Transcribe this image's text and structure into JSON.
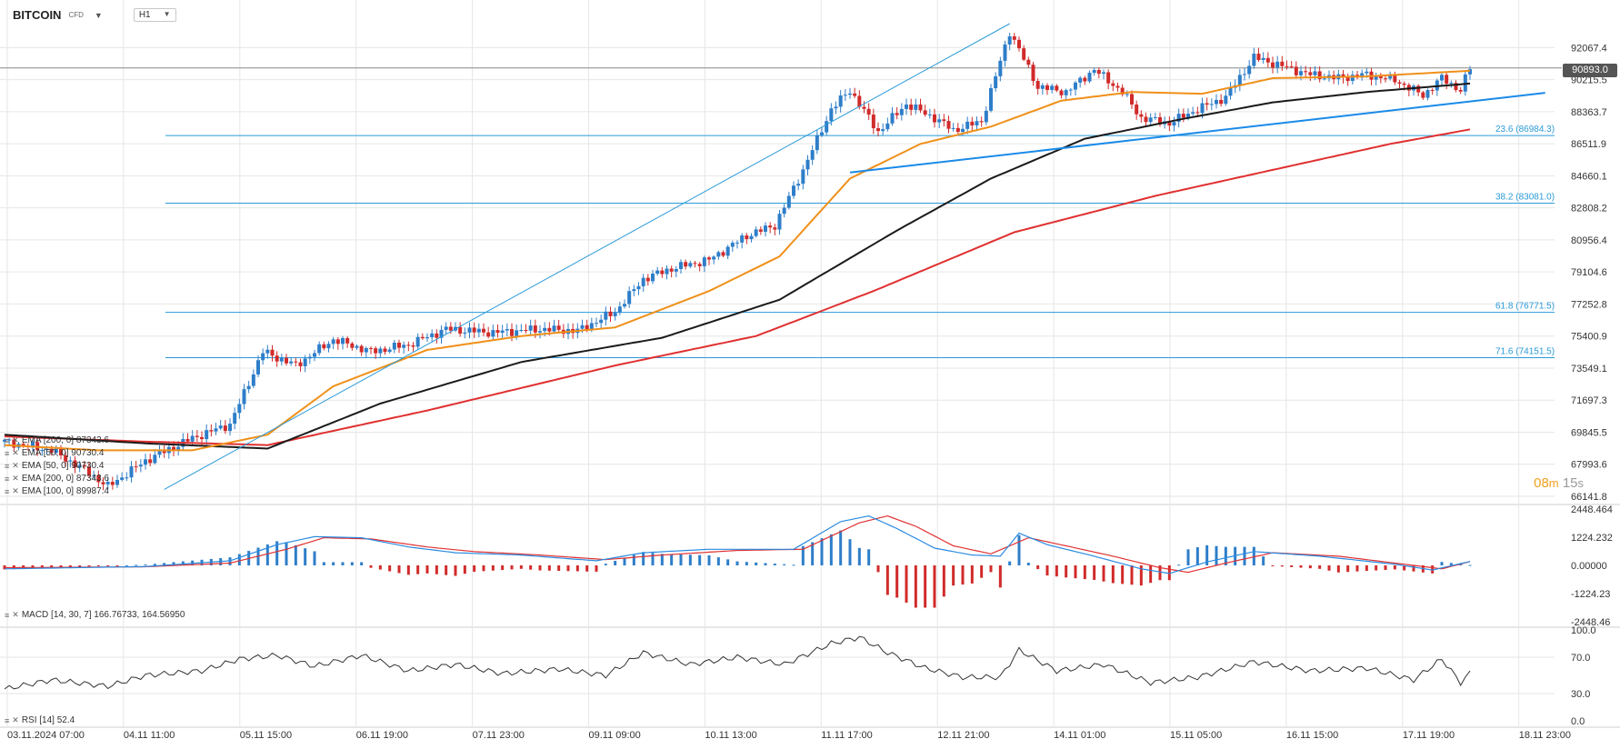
{
  "instrument": {
    "symbol": "BITCOIN",
    "type": "CFD",
    "timeframe": "H1"
  },
  "current_price_label": "90893.0",
  "timer": {
    "minutes": "08",
    "min_unit": "m",
    "seconds": "15",
    "sec_unit": "s"
  },
  "legends": {
    "ema_overlay_1": "EMA [200, 0] 87343.6",
    "ema_overlay_2": "EMA [50, 0] 90730.4",
    "ema_overlay_3": "EMA [50, 0] 90730.4",
    "ema200": "EMA [200, 0] 87343.6",
    "ema100": "EMA [100, 0] 89987.4",
    "macd": "MACD [14, 30, 7] 166.76733, 164.56950",
    "rsi": "RSI [14] 52.4"
  },
  "colors": {
    "up": "#2e7ec9",
    "down": "#d12a2a",
    "ema50": "#f0901a",
    "ema100": "#1a1a1a",
    "ema200": "#e03030",
    "fib": "#2a9ad8",
    "trend": "#1a8ae8",
    "macd": "#2a8ae0",
    "signal": "#e03030",
    "rsi": "#333333",
    "grid": "#e6e6e6"
  },
  "chart_data": [
    {
      "type": "candlestick",
      "title": "BITCOIN CFD H1",
      "y_ticks": [
        "92067.4",
        "90215.5",
        "88363.7",
        "86511.9",
        "84660.1",
        "82808.2",
        "80956.4",
        "79104.6",
        "77252.8",
        "75400.9",
        "73549.1",
        "71697.3",
        "69845.5",
        "67993.6",
        "66141.8"
      ],
      "ylim": [
        66141.8,
        93450
      ],
      "x_ticks": [
        "03.11.2024 07:00",
        "04.11 11:00",
        "05.11 15:00",
        "06.11 19:00",
        "07.11 23:00",
        "09.11 09:00",
        "10.11 13:00",
        "11.11 17:00",
        "12.11 21:00",
        "14.11 01:00",
        "15.11 05:00",
        "16.11 15:00",
        "17.11 19:00",
        "18.11 23:00"
      ],
      "current_price": 90893.0,
      "fib_levels": [
        {
          "label": "23.6 (86984.3)",
          "value": 86984.3
        },
        {
          "label": "38.2 (83081.0)",
          "value": 83081.0
        },
        {
          "label": "61.8 (76771.5)",
          "value": 76771.5
        },
        {
          "label": "71.6 (74151.5)",
          "value": 74151.5
        }
      ],
      "fib_swing": {
        "low": 66540,
        "high": 93450
      },
      "close_path": [
        {
          "t": 0,
          "v": 69300
        },
        {
          "t": 10,
          "v": 68800
        },
        {
          "t": 18,
          "v": 67500
        },
        {
          "t": 22,
          "v": 66700
        },
        {
          "t": 30,
          "v": 68200
        },
        {
          "t": 40,
          "v": 69500
        },
        {
          "t": 48,
          "v": 70300
        },
        {
          "t": 55,
          "v": 74500
        },
        {
          "t": 62,
          "v": 73700
        },
        {
          "t": 70,
          "v": 75200
        },
        {
          "t": 78,
          "v": 74500
        },
        {
          "t": 86,
          "v": 74900
        },
        {
          "t": 94,
          "v": 75800
        },
        {
          "t": 104,
          "v": 75600
        },
        {
          "t": 114,
          "v": 75800
        },
        {
          "t": 122,
          "v": 75700
        },
        {
          "t": 130,
          "v": 76800
        },
        {
          "t": 136,
          "v": 78700
        },
        {
          "t": 142,
          "v": 79300
        },
        {
          "t": 150,
          "v": 79800
        },
        {
          "t": 158,
          "v": 81200
        },
        {
          "t": 164,
          "v": 81800
        },
        {
          "t": 170,
          "v": 85000
        },
        {
          "t": 176,
          "v": 88500
        },
        {
          "t": 180,
          "v": 89600
        },
        {
          "t": 186,
          "v": 87200
        },
        {
          "t": 192,
          "v": 88800
        },
        {
          "t": 198,
          "v": 88000
        },
        {
          "t": 202,
          "v": 87300
        },
        {
          "t": 208,
          "v": 87800
        },
        {
          "t": 214,
          "v": 93000
        },
        {
          "t": 220,
          "v": 89800
        },
        {
          "t": 226,
          "v": 89500
        },
        {
          "t": 232,
          "v": 90800
        },
        {
          "t": 238,
          "v": 89500
        },
        {
          "t": 242,
          "v": 88000
        },
        {
          "t": 248,
          "v": 87700
        },
        {
          "t": 254,
          "v": 88500
        },
        {
          "t": 260,
          "v": 89200
        },
        {
          "t": 266,
          "v": 91500
        },
        {
          "t": 272,
          "v": 91000
        },
        {
          "t": 278,
          "v": 90500
        },
        {
          "t": 284,
          "v": 90300
        },
        {
          "t": 290,
          "v": 90500
        },
        {
          "t": 296,
          "v": 90200
        },
        {
          "t": 302,
          "v": 89300
        },
        {
          "t": 306,
          "v": 90300
        },
        {
          "t": 310,
          "v": 89600
        },
        {
          "t": 312,
          "v": 90900
        }
      ],
      "ema50_path": [
        {
          "t": 0,
          "v": 69100
        },
        {
          "t": 20,
          "v": 68800
        },
        {
          "t": 40,
          "v": 68800
        },
        {
          "t": 56,
          "v": 69700
        },
        {
          "t": 70,
          "v": 72500
        },
        {
          "t": 90,
          "v": 74600
        },
        {
          "t": 110,
          "v": 75400
        },
        {
          "t": 130,
          "v": 75900
        },
        {
          "t": 150,
          "v": 78000
        },
        {
          "t": 165,
          "v": 80000
        },
        {
          "t": 180,
          "v": 84500
        },
        {
          "t": 195,
          "v": 86500
        },
        {
          "t": 210,
          "v": 87500
        },
        {
          "t": 225,
          "v": 89000
        },
        {
          "t": 240,
          "v": 89500
        },
        {
          "t": 255,
          "v": 89400
        },
        {
          "t": 270,
          "v": 90300
        },
        {
          "t": 290,
          "v": 90400
        },
        {
          "t": 312,
          "v": 90730
        }
      ],
      "ema100_path": [
        {
          "t": 0,
          "v": 69700
        },
        {
          "t": 30,
          "v": 69200
        },
        {
          "t": 56,
          "v": 68900
        },
        {
          "t": 80,
          "v": 71500
        },
        {
          "t": 110,
          "v": 73900
        },
        {
          "t": 140,
          "v": 75300
        },
        {
          "t": 165,
          "v": 77500
        },
        {
          "t": 190,
          "v": 81500
        },
        {
          "t": 210,
          "v": 84500
        },
        {
          "t": 230,
          "v": 86800
        },
        {
          "t": 250,
          "v": 87900
        },
        {
          "t": 270,
          "v": 88900
        },
        {
          "t": 290,
          "v": 89500
        },
        {
          "t": 312,
          "v": 89990
        }
      ],
      "ema200_path": [
        {
          "t": 0,
          "v": 69600
        },
        {
          "t": 30,
          "v": 69300
        },
        {
          "t": 56,
          "v": 69100
        },
        {
          "t": 90,
          "v": 71100
        },
        {
          "t": 130,
          "v": 73700
        },
        {
          "t": 160,
          "v": 75400
        },
        {
          "t": 185,
          "v": 78000
        },
        {
          "t": 215,
          "v": 81400
        },
        {
          "t": 245,
          "v": 83500
        },
        {
          "t": 270,
          "v": 85000
        },
        {
          "t": 295,
          "v": 86500
        },
        {
          "t": 312,
          "v": 87340
        }
      ],
      "trendlines": [
        {
          "t1": 34,
          "v1": 66540,
          "t2": 214,
          "v2": 93450,
          "kind": "thin"
        },
        {
          "t1": 180,
          "v1": 84850,
          "t2": 328,
          "v2": 89450,
          "kind": "bold"
        }
      ]
    },
    {
      "type": "macd",
      "params": "MACD [14, 30, 7]",
      "y_ticks": [
        "2448.464",
        "1224.232",
        "0.00000",
        "-1224.23",
        "-2448.46"
      ],
      "ylim": [
        -2448.46,
        2448.464
      ],
      "macd_path": [
        {
          "t": 0,
          "v": -150
        },
        {
          "t": 30,
          "v": -50
        },
        {
          "t": 48,
          "v": 200
        },
        {
          "t": 58,
          "v": 900
        },
        {
          "t": 66,
          "v": 1250
        },
        {
          "t": 76,
          "v": 1200
        },
        {
          "t": 86,
          "v": 800
        },
        {
          "t": 96,
          "v": 550
        },
        {
          "t": 110,
          "v": 450
        },
        {
          "t": 126,
          "v": 200
        },
        {
          "t": 136,
          "v": 550
        },
        {
          "t": 150,
          "v": 700
        },
        {
          "t": 168,
          "v": 700
        },
        {
          "t": 178,
          "v": 1900
        },
        {
          "t": 184,
          "v": 2150
        },
        {
          "t": 190,
          "v": 1600
        },
        {
          "t": 198,
          "v": 750
        },
        {
          "t": 206,
          "v": 450
        },
        {
          "t": 212,
          "v": 400
        },
        {
          "t": 216,
          "v": 1400
        },
        {
          "t": 222,
          "v": 900
        },
        {
          "t": 232,
          "v": 400
        },
        {
          "t": 242,
          "v": -150
        },
        {
          "t": 248,
          "v": -350
        },
        {
          "t": 256,
          "v": 150
        },
        {
          "t": 266,
          "v": 600
        },
        {
          "t": 280,
          "v": 400
        },
        {
          "t": 296,
          "v": 50
        },
        {
          "t": 304,
          "v": -200
        },
        {
          "t": 312,
          "v": 170
        }
      ],
      "signal_path": [
        {
          "t": 0,
          "v": -100
        },
        {
          "t": 30,
          "v": -60
        },
        {
          "t": 48,
          "v": 100
        },
        {
          "t": 60,
          "v": 700
        },
        {
          "t": 68,
          "v": 1200
        },
        {
          "t": 78,
          "v": 1150
        },
        {
          "t": 90,
          "v": 800
        },
        {
          "t": 100,
          "v": 600
        },
        {
          "t": 114,
          "v": 450
        },
        {
          "t": 128,
          "v": 250
        },
        {
          "t": 140,
          "v": 450
        },
        {
          "t": 156,
          "v": 650
        },
        {
          "t": 170,
          "v": 700
        },
        {
          "t": 182,
          "v": 1850
        },
        {
          "t": 188,
          "v": 2150
        },
        {
          "t": 194,
          "v": 1700
        },
        {
          "t": 202,
          "v": 850
        },
        {
          "t": 210,
          "v": 500
        },
        {
          "t": 218,
          "v": 1200
        },
        {
          "t": 226,
          "v": 850
        },
        {
          "t": 236,
          "v": 400
        },
        {
          "t": 246,
          "v": -100
        },
        {
          "t": 252,
          "v": -300
        },
        {
          "t": 260,
          "v": 100
        },
        {
          "t": 270,
          "v": 550
        },
        {
          "t": 284,
          "v": 400
        },
        {
          "t": 298,
          "v": 50
        },
        {
          "t": 306,
          "v": -150
        },
        {
          "t": 312,
          "v": 165
        }
      ]
    },
    {
      "type": "rsi",
      "params": "RSI [14]",
      "y_ticks": [
        "100.0",
        "70.0",
        "30.0",
        "0.0"
      ],
      "ylim": [
        0,
        100
      ],
      "rsi_path": [
        {
          "t": 0,
          "v": 35
        },
        {
          "t": 10,
          "v": 45
        },
        {
          "t": 22,
          "v": 38
        },
        {
          "t": 30,
          "v": 50
        },
        {
          "t": 42,
          "v": 55
        },
        {
          "t": 50,
          "v": 68
        },
        {
          "t": 58,
          "v": 72
        },
        {
          "t": 66,
          "v": 60
        },
        {
          "t": 76,
          "v": 72
        },
        {
          "t": 86,
          "v": 55
        },
        {
          "t": 96,
          "v": 62
        },
        {
          "t": 106,
          "v": 52
        },
        {
          "t": 118,
          "v": 57
        },
        {
          "t": 128,
          "v": 50
        },
        {
          "t": 136,
          "v": 75
        },
        {
          "t": 146,
          "v": 62
        },
        {
          "t": 156,
          "v": 70
        },
        {
          "t": 166,
          "v": 62
        },
        {
          "t": 176,
          "v": 85
        },
        {
          "t": 182,
          "v": 92
        },
        {
          "t": 188,
          "v": 75
        },
        {
          "t": 196,
          "v": 58
        },
        {
          "t": 204,
          "v": 48
        },
        {
          "t": 212,
          "v": 48
        },
        {
          "t": 216,
          "v": 78
        },
        {
          "t": 224,
          "v": 55
        },
        {
          "t": 234,
          "v": 62
        },
        {
          "t": 244,
          "v": 42
        },
        {
          "t": 254,
          "v": 48
        },
        {
          "t": 266,
          "v": 65
        },
        {
          "t": 278,
          "v": 55
        },
        {
          "t": 290,
          "v": 58
        },
        {
          "t": 300,
          "v": 45
        },
        {
          "t": 306,
          "v": 68
        },
        {
          "t": 310,
          "v": 42
        },
        {
          "t": 312,
          "v": 52.4
        }
      ]
    }
  ]
}
